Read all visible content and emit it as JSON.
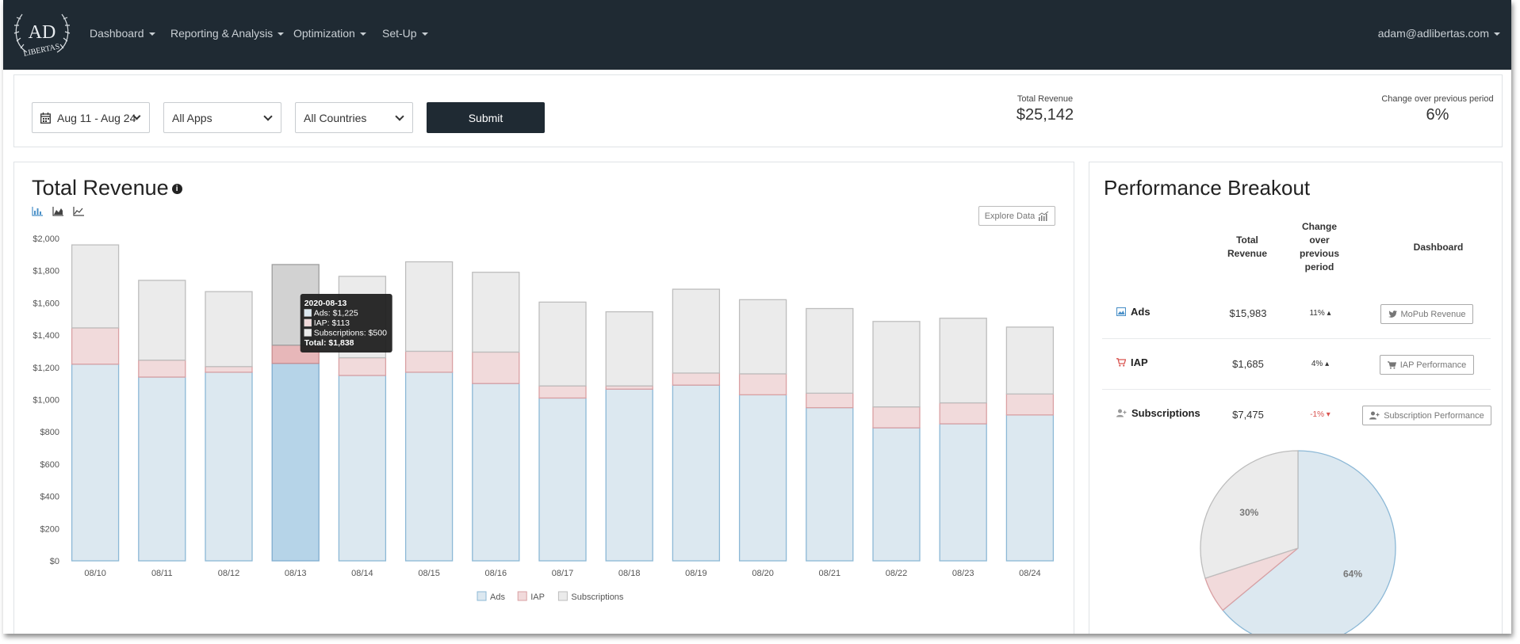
{
  "app": {
    "logo_top": "AD",
    "logo_bottom": "LIBERTAS"
  },
  "nav": {
    "items": [
      {
        "label": "Dashboard"
      },
      {
        "label": "Reporting & Analysis"
      },
      {
        "label": "Optimization"
      },
      {
        "label": "Set-Up"
      }
    ],
    "user": "adam@adlibertas.com"
  },
  "filters": {
    "date_range": "Aug 11 - Aug 24",
    "apps": "All Apps",
    "countries": "All Countries",
    "submit_label": "Submit"
  },
  "summary": {
    "total_revenue_label": "Total Revenue",
    "total_revenue_value": "$25,142",
    "change_label": "Change over previous period",
    "change_value": "6%"
  },
  "revenue_panel": {
    "title": "Total Revenue",
    "explore_label": "Explore Data",
    "tooltip": {
      "date": "2020-08-13",
      "ads": "Ads: $1,225",
      "iap": "IAP: $113",
      "subs": "Subscriptions: $500",
      "total": "Total: $1,838"
    }
  },
  "chart_data": [
    {
      "type": "bar",
      "stacked": true,
      "categories": [
        "08/10",
        "08/11",
        "08/12",
        "08/13",
        "08/14",
        "08/15",
        "08/16",
        "08/17",
        "08/18",
        "08/19",
        "08/20",
        "08/21",
        "08/22",
        "08/23",
        "08/24"
      ],
      "series": [
        {
          "name": "Ads",
          "color": "#dce8f0",
          "values": [
            1220,
            1140,
            1170,
            1225,
            1150,
            1170,
            1100,
            1010,
            1065,
            1090,
            1030,
            950,
            825,
            850,
            905
          ]
        },
        {
          "name": "IAP",
          "color": "#f1dadb",
          "values": [
            225,
            105,
            35,
            113,
            110,
            130,
            195,
            75,
            20,
            75,
            130,
            90,
            130,
            130,
            130
          ]
        },
        {
          "name": "Subscriptions",
          "color": "#ebebeb",
          "values": [
            515,
            495,
            465,
            500,
            505,
            555,
            495,
            520,
            460,
            520,
            460,
            525,
            530,
            525,
            415
          ]
        }
      ],
      "yticks": [
        "$0",
        "$200",
        "$400",
        "$600",
        "$800",
        "$1,000",
        "$1,200",
        "$1,400",
        "$1,600",
        "$1,800",
        "$2,000"
      ],
      "ylim": [
        0,
        2000
      ],
      "highlighted_category": "08/13",
      "legend_position": "bottom"
    },
    {
      "type": "pie",
      "slices": [
        {
          "name": "Ads",
          "value": 64,
          "label": "64%",
          "color": "#dce8f0"
        },
        {
          "name": "IAP",
          "value": 6,
          "label": "",
          "color": "#f1dadb"
        },
        {
          "name": "Subscriptions",
          "value": 30,
          "label": "30%",
          "color": "#ebebeb"
        }
      ]
    }
  ],
  "performance": {
    "title": "Performance Breakout",
    "headers": {
      "total": [
        "Total",
        "Revenue"
      ],
      "change": [
        "Change",
        "over",
        "previous",
        "period"
      ],
      "dashboard": "Dashboard"
    },
    "rows": [
      {
        "label": "Ads",
        "total": "$15,983",
        "change": "11%",
        "direction": "up",
        "button": "MoPub Revenue"
      },
      {
        "label": "IAP",
        "total": "$1,685",
        "change": "4%",
        "direction": "up",
        "button": "IAP Performance"
      },
      {
        "label": "Subscriptions",
        "total": "$7,475",
        "change": "-1%",
        "direction": "down",
        "button": "Subscription Performance"
      }
    ]
  }
}
